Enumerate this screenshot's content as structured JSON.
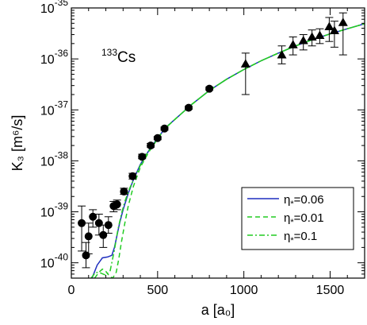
{
  "chart_data": {
    "type": "scatter",
    "xlabel": "a [a₀]",
    "ylabel": "K₃ [m⁶/s]",
    "annotation": {
      "mass": "133",
      "element": "Cs"
    },
    "xlim": [
      0,
      1700
    ],
    "ylim": [
      5e-41,
      1e-35
    ],
    "yscale": "log",
    "x_ticks": [
      0,
      500,
      1000,
      1500
    ],
    "y_ticks": [
      {
        "value": 1e-40,
        "mantissa": "10",
        "exponent": "-40"
      },
      {
        "value": 1e-39,
        "mantissa": "10",
        "exponent": "-39"
      },
      {
        "value": 1e-38,
        "mantissa": "10",
        "exponent": "-38"
      },
      {
        "value": 1e-37,
        "mantissa": "10",
        "exponent": "-37"
      },
      {
        "value": 1e-36,
        "mantissa": "10",
        "exponent": "-36"
      },
      {
        "value": 1e-35,
        "mantissa": "10",
        "exponent": "-35"
      }
    ],
    "legend": {
      "position": "lower-right",
      "entries": [
        {
          "symbol": "η",
          "sub": "*",
          "value": "=0.06",
          "color": "#1f2fbf",
          "dash": "solid"
        },
        {
          "symbol": "η",
          "sub": "*",
          "value": "=0.01",
          "color": "#22cc22",
          "dash": "dashed"
        },
        {
          "symbol": "η",
          "sub": "*",
          "value": "=0.1",
          "color": "#22cc22",
          "dash": "dashdot"
        }
      ]
    },
    "series": [
      {
        "marker": "circle",
        "color": "#000000",
        "points": [
          {
            "x": 60,
            "y": 6e-40,
            "ylo": 1.7e-40,
            "yhi": 1.3e-39
          },
          {
            "x": 85,
            "y": 1.4e-40,
            "ylo": 8e-41,
            "yhi": 2.5e-40
          },
          {
            "x": 100,
            "y": 3.3e-40,
            "ylo": 1.5e-40,
            "yhi": 6e-40
          },
          {
            "x": 125,
            "y": 8e-40,
            "ylo": 5e-40,
            "yhi": 1.1e-39
          },
          {
            "x": 160,
            "y": 6e-40,
            "ylo": 3.5e-40,
            "yhi": 9e-40
          },
          {
            "x": 185,
            "y": 3.5e-40,
            "ylo": 2e-40,
            "yhi": 5.5e-40
          },
          {
            "x": 215,
            "y": 5.5e-40,
            "ylo": 3.8e-40,
            "yhi": 8e-40
          },
          {
            "x": 245,
            "y": 1.3e-39,
            "ylo": 1e-39,
            "yhi": 1.6e-39
          },
          {
            "x": 265,
            "y": 1.4e-39,
            "ylo": 1.1e-39,
            "yhi": 1.7e-39
          },
          {
            "x": 305,
            "y": 2.5e-39,
            "ylo": 2.2e-39,
            "yhi": 2.9e-39
          },
          {
            "x": 355,
            "y": 5e-39,
            "ylo": 4.4e-39,
            "yhi": 5.7e-39
          },
          {
            "x": 410,
            "y": 1.2e-38,
            "ylo": 1.1e-38,
            "yhi": 1.35e-38
          },
          {
            "x": 460,
            "y": 2e-38,
            "ylo": 1.85e-38,
            "yhi": 2.2e-38
          },
          {
            "x": 500,
            "y": 2.8e-38,
            "ylo": 2.6e-38,
            "yhi": 3e-38
          },
          {
            "x": 540,
            "y": 4.3e-38,
            "ylo": 4e-38,
            "yhi": 4.6e-38
          },
          {
            "x": 680,
            "y": 1.1e-37,
            "ylo": 1.03e-37,
            "yhi": 1.18e-37
          },
          {
            "x": 800,
            "y": 2.6e-37,
            "ylo": 2.45e-37,
            "yhi": 2.8e-37
          }
        ]
      },
      {
        "marker": "triangle",
        "color": "#000000",
        "points": [
          {
            "x": 1010,
            "y": 8e-37,
            "ylo": 2e-37,
            "yhi": 1.3e-36
          },
          {
            "x": 1220,
            "y": 1.2e-36,
            "ylo": 8e-37,
            "yhi": 1.8e-36
          },
          {
            "x": 1285,
            "y": 1.9e-36,
            "ylo": 1.2e-36,
            "yhi": 2.7e-36
          },
          {
            "x": 1345,
            "y": 2.3e-36,
            "ylo": 1.5e-36,
            "yhi": 3e-36
          },
          {
            "x": 1395,
            "y": 2.7e-36,
            "ylo": 1.8e-36,
            "yhi": 3.7e-36
          },
          {
            "x": 1440,
            "y": 2.9e-36,
            "ylo": 2e-36,
            "yhi": 3.9e-36
          },
          {
            "x": 1495,
            "y": 4.3e-36,
            "ylo": 2.2e-36,
            "yhi": 6.5e-36
          },
          {
            "x": 1525,
            "y": 3.6e-36,
            "ylo": 1.7e-36,
            "yhi": 5.5e-36
          },
          {
            "x": 1575,
            "y": 5.2e-36,
            "ylo": 1.2e-36,
            "yhi": 8e-36
          }
        ]
      }
    ],
    "curves": [
      {
        "legend_index": 0,
        "color": "#1f2fbf",
        "dash": "solid",
        "x": [
          120,
          150,
          180,
          210,
          235,
          250,
          265,
          280,
          300,
          330,
          360,
          400,
          450,
          500,
          550,
          600,
          700,
          800,
          900,
          1000,
          1100,
          1200,
          1300,
          1400,
          1500,
          1600,
          1700
        ],
        "y": [
          5e-41,
          9e-41,
          1.25e-40,
          1.3e-40,
          1.4e-40,
          2e-40,
          3.5e-40,
          6e-40,
          1.1e-39,
          2.3e-39,
          4.3e-39,
          8.5e-39,
          1.6e-38,
          2.8e-38,
          4.6e-38,
          6.5e-38,
          1.3e-37,
          2.4e-37,
          4e-37,
          6.2e-37,
          9.2e-37,
          1.3e-36,
          1.8e-36,
          2.4e-36,
          3.1e-36,
          3.9e-36,
          4.9e-36
        ]
      },
      {
        "legend_index": 1,
        "color": "#22cc22",
        "dash": "dashed",
        "x": [
          135,
          160,
          180,
          200,
          220,
          240,
          260,
          275,
          290,
          310,
          330,
          360,
          400,
          450,
          500,
          550,
          600,
          700,
          800,
          900,
          1000,
          1100,
          1200,
          1300,
          1400,
          1500,
          1600,
          1700
        ],
        "y": [
          5e-41,
          6.5e-41,
          7.5e-41,
          6.8e-41,
          5.5e-41,
          5e-41,
          6.5e-41,
          1.2e-40,
          2.5e-40,
          6e-40,
          1.3e-39,
          3.2e-39,
          7.5e-39,
          1.5e-38,
          2.7e-38,
          4.5e-38,
          6.5e-38,
          1.3e-37,
          2.4e-37,
          4e-37,
          6.2e-37,
          9.2e-37,
          1.3e-36,
          1.8e-36,
          2.4e-36,
          3.1e-36,
          3.9e-36,
          4.9e-36
        ]
      },
      {
        "legend_index": 2,
        "color": "#22cc22",
        "dash": "dashdot",
        "x": [
          115,
          140,
          170,
          200,
          225,
          250,
          270,
          290,
          310,
          340,
          370,
          410,
          450,
          500,
          550,
          600,
          700,
          800,
          900,
          1000,
          1100,
          1200,
          1300,
          1400,
          1500,
          1600,
          1700
        ],
        "y": [
          5e-41,
          6.5e-41,
          6.3e-41,
          5.7e-41,
          7e-41,
          1.8e-40,
          4.5e-40,
          9e-40,
          1.6e-39,
          3e-39,
          5e-39,
          9.5e-39,
          1.6e-38,
          2.8e-38,
          4.6e-38,
          6.5e-38,
          1.3e-37,
          2.4e-37,
          4e-37,
          6.2e-37,
          9.2e-37,
          1.3e-36,
          1.8e-36,
          2.4e-36,
          3.1e-36,
          3.9e-36,
          4.9e-36
        ]
      }
    ]
  }
}
